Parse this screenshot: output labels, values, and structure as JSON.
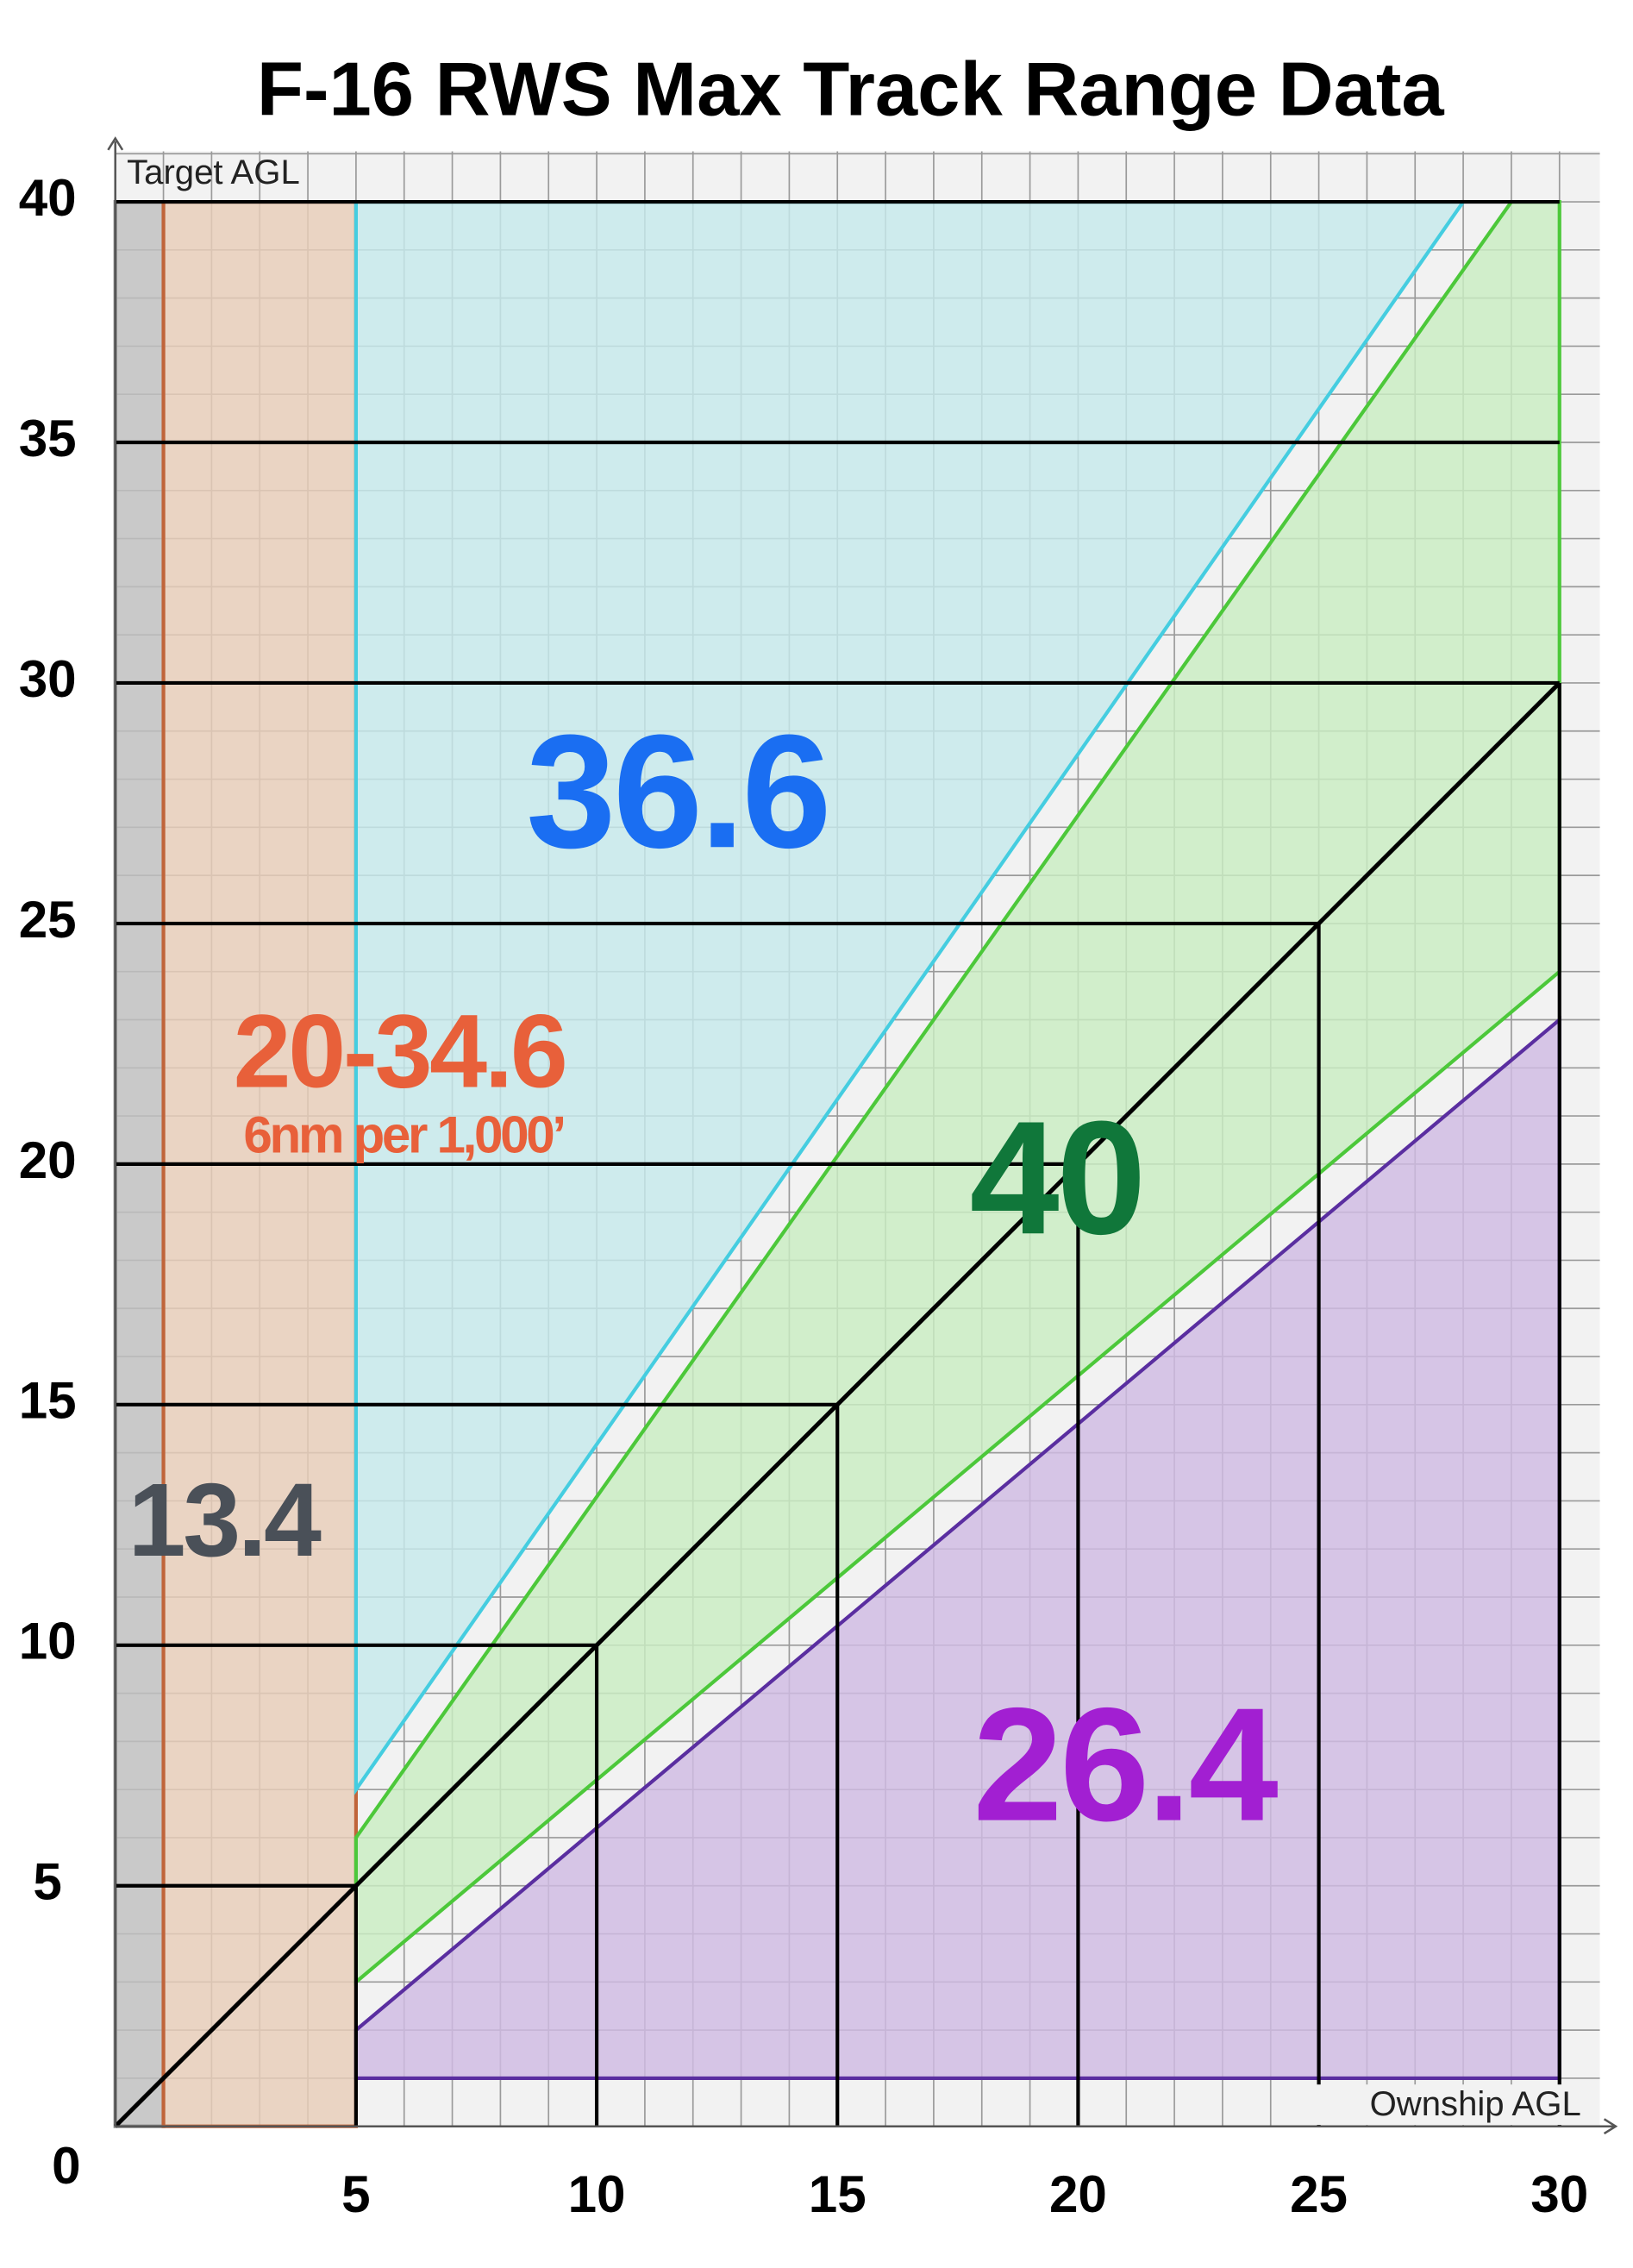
{
  "chart_data": {
    "type": "region",
    "title": "F-16 RWS Max Track Range Data",
    "y_label": "Target AGL",
    "x_label": "Ownship AGL",
    "xlim": [
      0,
      30
    ],
    "ylim": [
      0,
      40
    ],
    "xticks": [
      0,
      5,
      10,
      15,
      20,
      25,
      30
    ],
    "yticks": [
      5,
      10,
      15,
      20,
      25,
      30,
      35,
      40
    ],
    "grid": true,
    "regions": [
      {
        "color": "#bfbfbf",
        "stroke": "#8a8a8a",
        "x": [
          0,
          0,
          1,
          1
        ],
        "values": [
          0,
          40,
          40,
          0
        ]
      },
      {
        "color": "#e8cdb8",
        "stroke": "#c0643a",
        "x": [
          1,
          1,
          5,
          5
        ],
        "values": [
          0,
          40,
          40,
          0
        ]
      },
      {
        "color": "#c6e9ec",
        "stroke": "#45cde0",
        "x": [
          5,
          5,
          28
        ],
        "values": [
          7,
          40,
          40
        ]
      },
      {
        "color": "#c9edc2",
        "stroke": "#4cc83a",
        "x": [
          5,
          5,
          29,
          30,
          30
        ],
        "values": [
          3,
          6,
          40,
          40,
          24
        ]
      },
      {
        "color": "#cfbbe3",
        "stroke": "#5a2ea0",
        "x": [
          5,
          5,
          30,
          30
        ],
        "values": [
          1,
          2,
          23,
          1
        ]
      }
    ],
    "lines": [
      {
        "color": "#000000",
        "x": [
          0,
          30
        ],
        "values": [
          0,
          30
        ]
      }
    ],
    "annotations": [
      {
        "text": "36.6",
        "color": "#1a6ef2"
      },
      {
        "text": "20-34.6",
        "color": "#e8603a"
      },
      {
        "text": "6nm per 1,000’",
        "color": "#e8603a"
      },
      {
        "text": "40",
        "color": "#10773a"
      },
      {
        "text": "13.4",
        "color": "#4a5058"
      },
      {
        "text": "26.4",
        "color": "#a21fd2"
      }
    ]
  }
}
